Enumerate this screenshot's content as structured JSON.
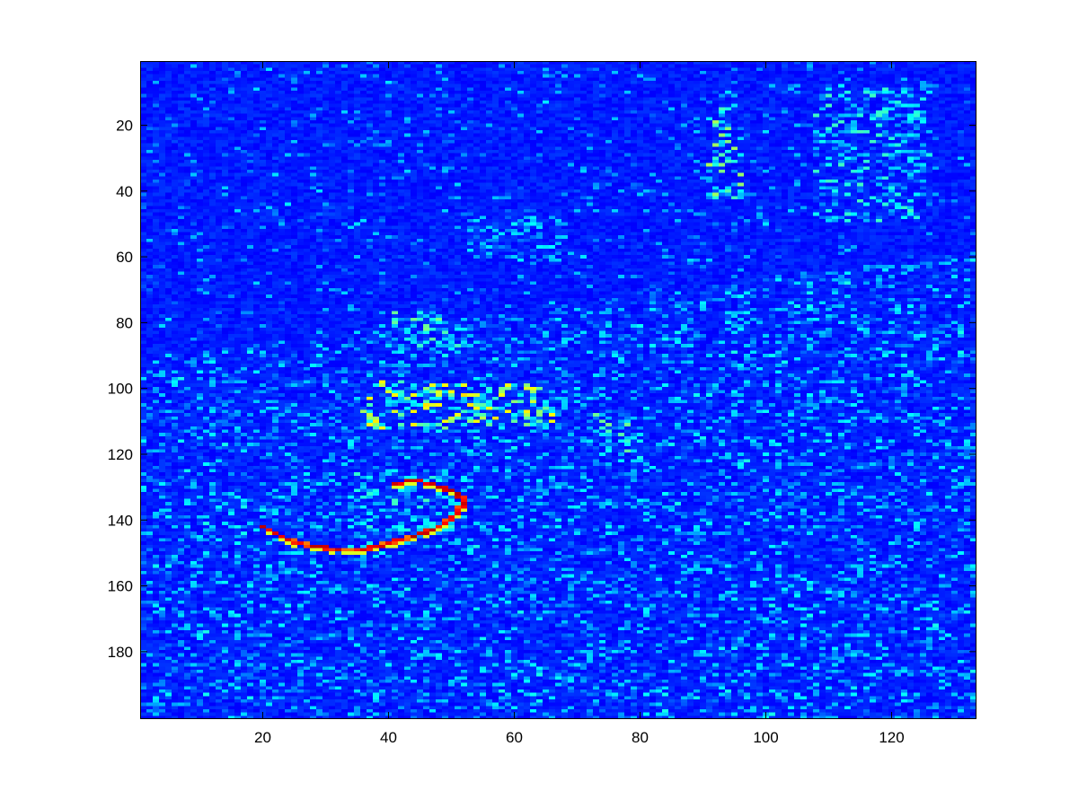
{
  "chart_data": {
    "type": "heatmap",
    "title": "",
    "xlabel": "",
    "ylabel": "",
    "colormap": "jet",
    "grid": false,
    "legend": "none",
    "y_axis_direction": "top-to-bottom",
    "xlim": [
      0.5,
      133.5
    ],
    "ylim": [
      0.5,
      200.5
    ],
    "rows": 200,
    "cols": 133,
    "value_range": [
      0,
      1
    ],
    "background_level": 0.12,
    "x_ticks": [
      20,
      40,
      60,
      80,
      100,
      120
    ],
    "x_tick_labels": [
      "20",
      "40",
      "60",
      "80",
      "100",
      "120"
    ],
    "y_ticks": [
      20,
      40,
      60,
      80,
      100,
      120,
      140,
      160,
      180
    ],
    "y_tick_labels": [
      "20",
      "40",
      "60",
      "80",
      "100",
      "120",
      "140",
      "160",
      "180"
    ],
    "regions": [
      {
        "description": "bright curved contour",
        "points": [
          [
            20,
            142
          ],
          [
            24,
            146
          ],
          [
            28,
            148
          ],
          [
            32,
            149
          ],
          [
            36,
            149
          ],
          [
            40,
            147
          ],
          [
            44,
            145
          ],
          [
            48,
            142
          ],
          [
            51,
            138
          ],
          [
            52,
            134
          ],
          [
            50,
            131
          ],
          [
            47,
            129
          ],
          [
            44,
            128
          ],
          [
            41,
            129
          ]
        ],
        "value": 0.85
      },
      {
        "description": "bright cluster",
        "x_range": [
          36,
          67
        ],
        "y_range": [
          98,
          112
        ],
        "value": 0.6
      },
      {
        "description": "cluster",
        "x_range": [
          38,
          52
        ],
        "y_range": [
          77,
          89
        ],
        "value": 0.45
      },
      {
        "description": "cluster",
        "x_range": [
          34,
          52
        ],
        "y_range": [
          125,
          145
        ],
        "value": 0.4
      },
      {
        "description": "vertical streak",
        "x_range": [
          91,
          96
        ],
        "y_range": [
          10,
          42
        ],
        "value": 0.5
      },
      {
        "description": "cluster",
        "x_range": [
          108,
          126
        ],
        "y_range": [
          8,
          50
        ],
        "value": 0.4
      },
      {
        "description": "cluster",
        "x_range": [
          73,
          79
        ],
        "y_range": [
          108,
          121
        ],
        "value": 0.45
      },
      {
        "description": "cluster",
        "x_range": [
          53,
          68
        ],
        "y_range": [
          48,
          62
        ],
        "value": 0.35
      }
    ]
  }
}
